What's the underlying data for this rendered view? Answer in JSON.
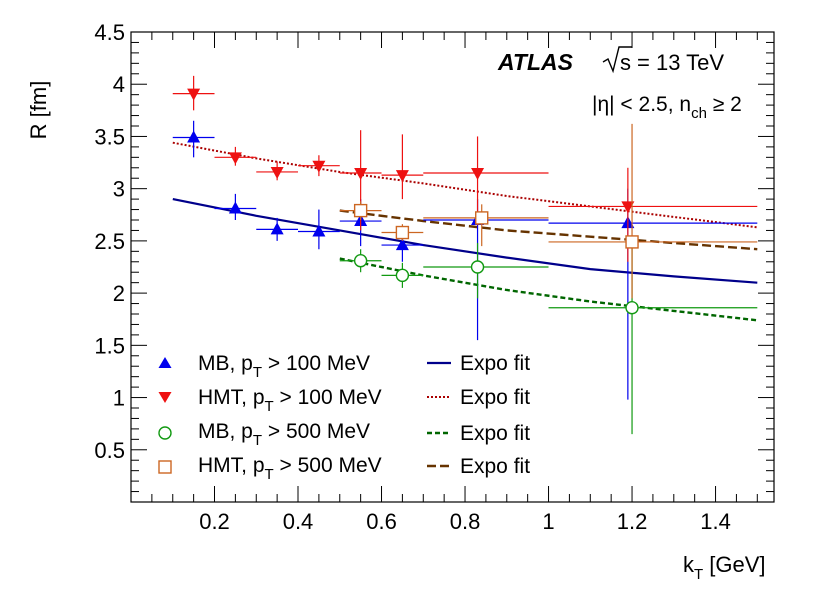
{
  "chart_data": {
    "type": "scatter",
    "xlabel": "k",
    "xlabel_sub": "T",
    "xlabel_unit": " [GeV]",
    "ylabel": "R [fm]",
    "xlim": [
      0.0,
      1.54
    ],
    "ylim": [
      0.0,
      4.5
    ],
    "xticks": [
      {
        "v": 0.2,
        "label": "0.2"
      },
      {
        "v": 0.4,
        "label": "0.4"
      },
      {
        "v": 0.6,
        "label": "0.6"
      },
      {
        "v": 0.8,
        "label": "0.8"
      },
      {
        "v": 1.0,
        "label": "1"
      },
      {
        "v": 1.2,
        "label": "1.2"
      },
      {
        "v": 1.4,
        "label": "1.4"
      }
    ],
    "yticks": [
      {
        "v": 0.5,
        "label": "0.5"
      },
      {
        "v": 1.0,
        "label": "1"
      },
      {
        "v": 1.5,
        "label": "1.5"
      },
      {
        "v": 2.0,
        "label": "2"
      },
      {
        "v": 2.5,
        "label": "2.5"
      },
      {
        "v": 3.0,
        "label": "3"
      },
      {
        "v": 3.5,
        "label": "3.5"
      },
      {
        "v": 4.0,
        "label": "4"
      },
      {
        "v": 4.5,
        "label": "4.5"
      }
    ],
    "annotations": {
      "atlas": "ATLAS",
      "energy": "= 13 TeV",
      "sqrt_s": "s",
      "eta_cut": "|η| < 2.5, n",
      "nch_sub": "ch",
      "nch_cut": " ≥ 2"
    },
    "series": [
      {
        "name": "MB, p_T > 100 MeV",
        "legend": {
          "pre": "MB, p",
          "sub": "T",
          "post": " > 100 MeV"
        },
        "marker": "triangle-up",
        "filled": true,
        "color": "#0000ee",
        "points": [
          {
            "x": 0.15,
            "y": 3.49,
            "xlo": 0.1,
            "xhi": 0.2,
            "ylo": 3.3,
            "yhi": 3.65
          },
          {
            "x": 0.25,
            "y": 2.81,
            "xlo": 0.2,
            "xhi": 0.3,
            "ylo": 2.7,
            "yhi": 2.95
          },
          {
            "x": 0.35,
            "y": 2.61,
            "xlo": 0.3,
            "xhi": 0.4,
            "ylo": 2.5,
            "yhi": 2.72
          },
          {
            "x": 0.45,
            "y": 2.59,
            "xlo": 0.4,
            "xhi": 0.5,
            "ylo": 2.42,
            "yhi": 2.8
          },
          {
            "x": 0.55,
            "y": 2.69,
            "xlo": 0.5,
            "xhi": 0.6,
            "ylo": 2.45,
            "yhi": 2.9
          },
          {
            "x": 0.65,
            "y": 2.46,
            "xlo": 0.6,
            "xhi": 0.7,
            "ylo": 2.3,
            "yhi": 2.62
          },
          {
            "x": 0.83,
            "y": 2.7,
            "xlo": 0.7,
            "xhi": 1.0,
            "ylo": 1.55,
            "yhi": 2.9
          },
          {
            "x": 1.19,
            "y": 2.67,
            "xlo": 1.0,
            "xhi": 1.5,
            "ylo": 0.98,
            "yhi": 3.0
          }
        ]
      },
      {
        "name": "HMT, p_T > 100 MeV",
        "legend": {
          "pre": "HMT, p",
          "sub": "T",
          "post": " > 100 MeV"
        },
        "marker": "triangle-down",
        "filled": true,
        "color": "#ee1111",
        "points": [
          {
            "x": 0.15,
            "y": 3.91,
            "xlo": 0.1,
            "xhi": 0.2,
            "ylo": 3.75,
            "yhi": 4.08
          },
          {
            "x": 0.25,
            "y": 3.3,
            "xlo": 0.2,
            "xhi": 0.3,
            "ylo": 3.22,
            "yhi": 3.4
          },
          {
            "x": 0.35,
            "y": 3.16,
            "xlo": 0.3,
            "xhi": 0.4,
            "ylo": 3.08,
            "yhi": 3.26
          },
          {
            "x": 0.45,
            "y": 3.22,
            "xlo": 0.4,
            "xhi": 0.5,
            "ylo": 3.12,
            "yhi": 3.32
          },
          {
            "x": 0.55,
            "y": 3.15,
            "xlo": 0.5,
            "xhi": 0.6,
            "ylo": 2.6,
            "yhi": 3.56
          },
          {
            "x": 0.65,
            "y": 3.13,
            "xlo": 0.6,
            "xhi": 0.7,
            "ylo": 2.9,
            "yhi": 3.52
          },
          {
            "x": 0.83,
            "y": 3.15,
            "xlo": 0.7,
            "xhi": 1.0,
            "ylo": 2.65,
            "yhi": 3.5
          },
          {
            "x": 1.19,
            "y": 2.83,
            "xlo": 1.0,
            "xhi": 1.5,
            "ylo": 2.3,
            "yhi": 3.2
          }
        ]
      },
      {
        "name": "MB, p_T > 500 MeV",
        "legend": {
          "pre": "MB, p",
          "sub": "T",
          "post": " > 500 MeV"
        },
        "marker": "circle",
        "filled": false,
        "color": "#119911",
        "points": [
          {
            "x": 0.55,
            "y": 2.31,
            "xlo": 0.5,
            "xhi": 0.6,
            "ylo": 2.2,
            "yhi": 2.42
          },
          {
            "x": 0.65,
            "y": 2.17,
            "xlo": 0.6,
            "xhi": 0.7,
            "ylo": 2.05,
            "yhi": 2.29
          },
          {
            "x": 0.83,
            "y": 2.25,
            "xlo": 0.7,
            "xhi": 1.0,
            "ylo": 1.95,
            "yhi": 2.48
          },
          {
            "x": 1.2,
            "y": 1.86,
            "xlo": 1.0,
            "xhi": 1.5,
            "ylo": 0.65,
            "yhi": 2.5
          }
        ]
      },
      {
        "name": "HMT, p_T > 500 MeV",
        "legend": {
          "pre": "HMT, p",
          "sub": "T",
          "post": " > 500 MeV"
        },
        "marker": "square",
        "filled": false,
        "color": "#cc6622",
        "points": [
          {
            "x": 0.55,
            "y": 2.79,
            "xlo": 0.5,
            "xhi": 0.6,
            "ylo": 2.7,
            "yhi": 2.88
          },
          {
            "x": 0.65,
            "y": 2.58,
            "xlo": 0.6,
            "xhi": 0.7,
            "ylo": 2.5,
            "yhi": 2.66
          },
          {
            "x": 0.84,
            "y": 2.72,
            "xlo": 0.7,
            "xhi": 1.0,
            "ylo": 2.45,
            "yhi": 2.85
          },
          {
            "x": 1.2,
            "y": 2.49,
            "xlo": 1.0,
            "xhi": 1.5,
            "ylo": 1.95,
            "yhi": 3.62
          }
        ]
      }
    ],
    "fits": [
      {
        "name": "Expo fit",
        "label": "Expo fit",
        "color": "#00008b",
        "dash": "solid",
        "xmin": 0.1,
        "xmax": 1.5,
        "points": [
          [
            0.1,
            2.9
          ],
          [
            0.3,
            2.74
          ],
          [
            0.5,
            2.6
          ],
          [
            0.7,
            2.46
          ],
          [
            0.9,
            2.34
          ],
          [
            1.1,
            2.23
          ],
          [
            1.3,
            2.16
          ],
          [
            1.5,
            2.1
          ]
        ]
      },
      {
        "name": "Expo fit",
        "label": "Expo fit",
        "color": "#aa0000",
        "dash": "dotted",
        "xmin": 0.1,
        "xmax": 1.5,
        "points": [
          [
            0.1,
            3.44
          ],
          [
            0.3,
            3.29
          ],
          [
            0.5,
            3.16
          ],
          [
            0.7,
            3.05
          ],
          [
            0.9,
            2.93
          ],
          [
            1.1,
            2.83
          ],
          [
            1.3,
            2.73
          ],
          [
            1.5,
            2.63
          ]
        ]
      },
      {
        "name": "Expo fit",
        "label": "Expo fit",
        "color": "#006600",
        "dash": "dashed-short",
        "xmin": 0.5,
        "xmax": 1.5,
        "points": [
          [
            0.5,
            2.33
          ],
          [
            0.7,
            2.17
          ],
          [
            0.9,
            2.03
          ],
          [
            1.1,
            1.92
          ],
          [
            1.3,
            1.83
          ],
          [
            1.5,
            1.74
          ]
        ]
      },
      {
        "name": "Expo fit",
        "label": "Expo fit",
        "color": "#663300",
        "dash": "dashed-long",
        "xmin": 0.5,
        "xmax": 1.5,
        "points": [
          [
            0.5,
            2.79
          ],
          [
            0.7,
            2.69
          ],
          [
            0.9,
            2.6
          ],
          [
            1.1,
            2.54
          ],
          [
            1.3,
            2.48
          ],
          [
            1.5,
            2.42
          ]
        ]
      }
    ]
  }
}
